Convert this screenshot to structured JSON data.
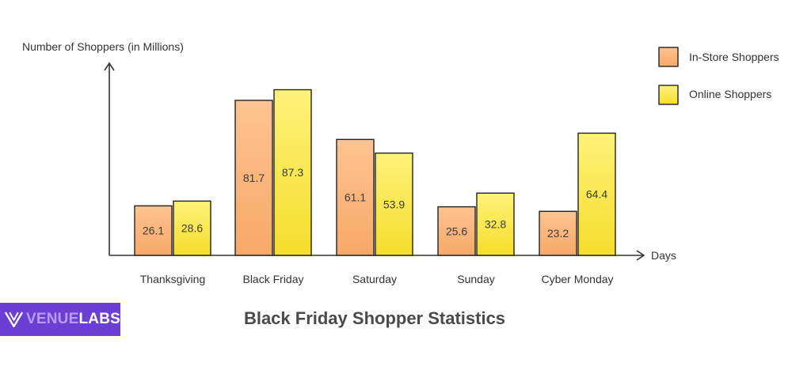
{
  "colors": {
    "instore_fill_top": "#ffc392",
    "instore_fill_bottom": "#f7a868",
    "instore_stroke": "#222222",
    "online_fill_top": "#fff27a",
    "online_fill_bottom": "#f5dd2b",
    "online_stroke": "#222222",
    "axis": "#333333",
    "logo_bg": "#6b3fd4"
  },
  "logo": {
    "part1": "VENUE",
    "part2": "LABS"
  },
  "chart_data": {
    "type": "bar",
    "title": "Black Friday Shopper Statistics",
    "xlabel": "Days",
    "ylabel": "Number of Shoppers (in Millions)",
    "categories": [
      "Thanksgiving",
      "Black Friday",
      "Saturday",
      "Sunday",
      "Cyber Monday"
    ],
    "series": [
      {
        "name": "In-Store Shoppers",
        "values": [
          26.1,
          81.7,
          61.1,
          25.6,
          23.2
        ]
      },
      {
        "name": "Online Shoppers",
        "values": [
          28.6,
          87.3,
          53.9,
          32.8,
          64.4
        ]
      }
    ],
    "ylim": [
      0,
      100
    ],
    "grid": false,
    "legend_position": "top-right"
  }
}
